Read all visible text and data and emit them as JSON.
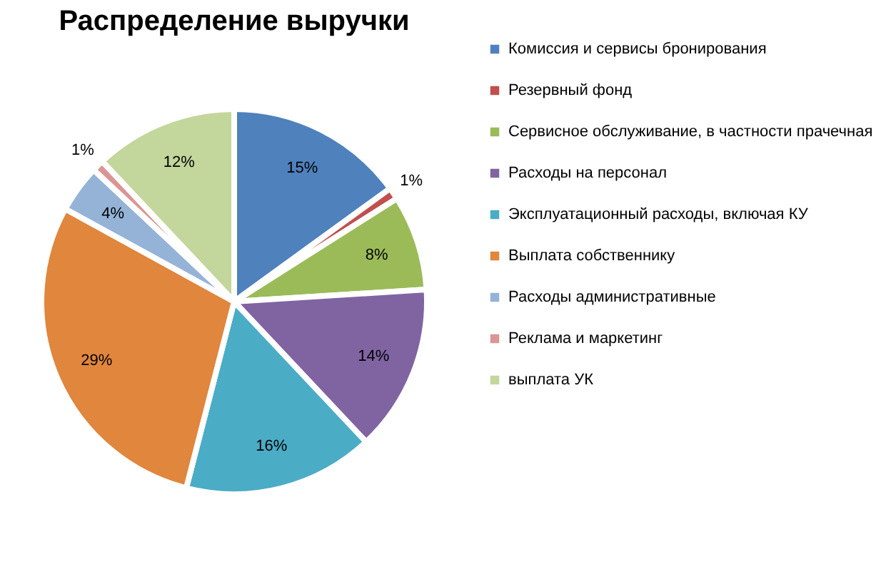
{
  "chart_data": {
    "type": "pie",
    "title": "Распределение выручки",
    "categories": [
      "Комиссия и сервисы бронирования",
      "Резервный фонд",
      "Сервисное обслуживание, в частности прачечная",
      "Расходы на персонал",
      "Эксплуатационный расходы, включая КУ",
      "Выплата собственнику",
      "Расходы административные",
      "Реклама и маркетинг",
      "выплата УК"
    ],
    "values": [
      15,
      1,
      8,
      14,
      16,
      29,
      4,
      1,
      12
    ],
    "value_labels": [
      "15%",
      "1%",
      "8%",
      "14%",
      "16%",
      "29%",
      "4%",
      "1%",
      "12%"
    ],
    "colors": [
      "#4f81bd",
      "#c0504d",
      "#9bbb59",
      "#8064a2",
      "#4bacc6",
      "#e0863d",
      "#95b3d7",
      "#d99694",
      "#c3d69b"
    ],
    "legend": "right"
  }
}
